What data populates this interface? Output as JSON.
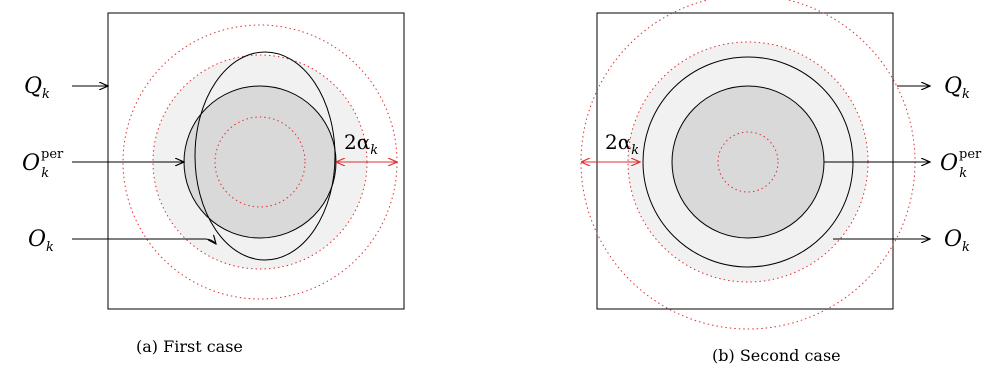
{
  "panels": [
    {
      "caption": "(a) First case",
      "label_q": "Q",
      "label_q_sub": "k",
      "label_oper": "O",
      "label_oper_sup": "per",
      "label_oper_sub": "k",
      "label_o": "O",
      "label_o_sub": "k",
      "label_alpha": "2α",
      "label_alpha_sub": "k"
    },
    {
      "caption": "(b) Second case",
      "label_q": "Q",
      "label_q_sub": "k",
      "label_oper": "O",
      "label_oper_sup": "per",
      "label_oper_sub": "k",
      "label_o": "O",
      "label_o_sub": "k",
      "label_alpha": "2α",
      "label_alpha_sub": "k"
    }
  ],
  "colors": {
    "light_fill": "#f1f1f1",
    "dark_fill": "#d9d9d9",
    "dotted": "#e03030",
    "arrow_red": "#e03030"
  }
}
